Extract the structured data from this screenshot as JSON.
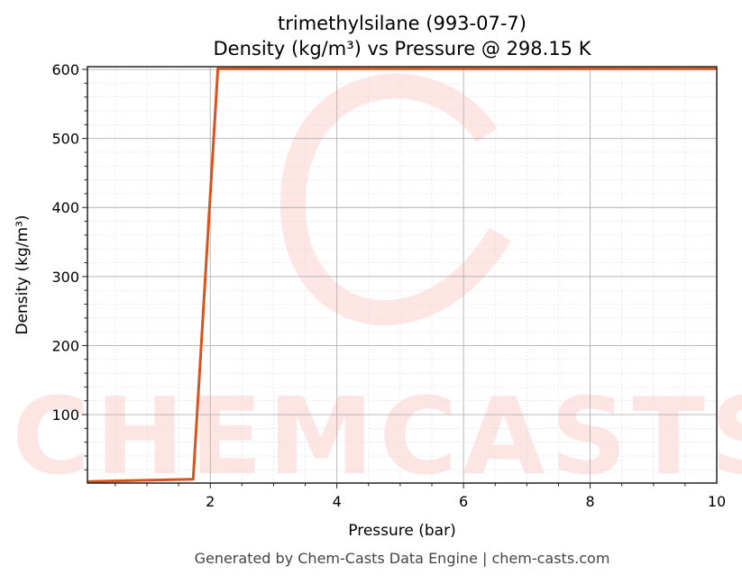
{
  "chart_data": {
    "type": "line",
    "title": "trimethylsilane (993-07-7)",
    "subtitle": "Density (kg/m³) vs Pressure @ 298.15 K",
    "xlabel": "Pressure (bar)",
    "ylabel": "Density (kg/m³)",
    "xlim": [
      0.06,
      10
    ],
    "ylim": [
      0.8,
      604
    ],
    "xticks": [
      2,
      4,
      6,
      8,
      10
    ],
    "yticks": [
      100,
      200,
      300,
      400,
      500,
      600
    ],
    "grid": true,
    "series": [
      {
        "color": "#d9531e",
        "x": [
          0.06,
          1.73,
          2.12,
          10
        ],
        "y": [
          3,
          6.4,
          601,
          601
        ]
      }
    ]
  },
  "watermark": "CHEMCASTS",
  "footer": "Generated by Chem-Casts Data Engine | chem-casts.com"
}
